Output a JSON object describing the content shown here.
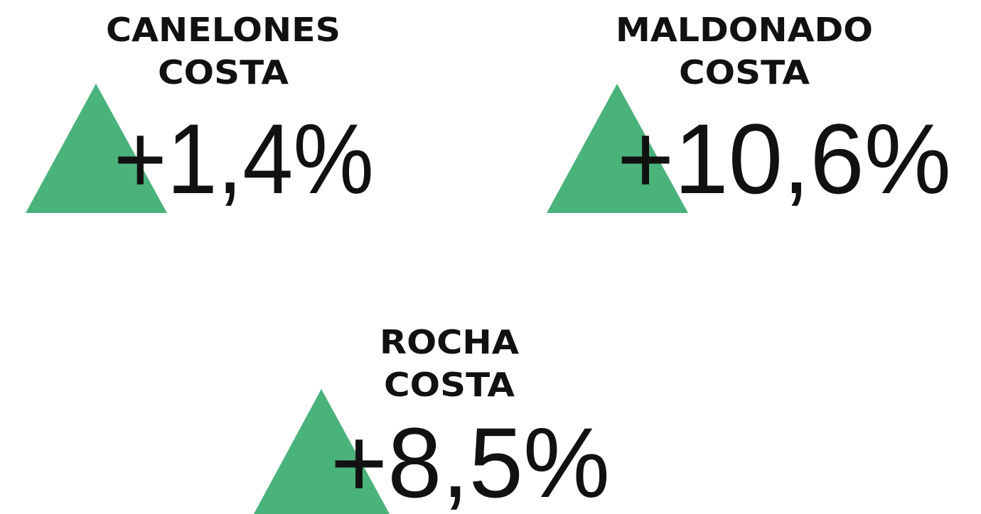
{
  "items": [
    {
      "lines": [
        "CANELONES",
        "COSTA"
      ],
      "value": "+1,4%"
    },
    {
      "lines": [
        "MALDONADO",
        "COSTA"
      ],
      "value": "+10,6%"
    },
    {
      "lines": [
        "ROCHA",
        "COSTA"
      ],
      "value": "+8,5%"
    }
  ]
}
